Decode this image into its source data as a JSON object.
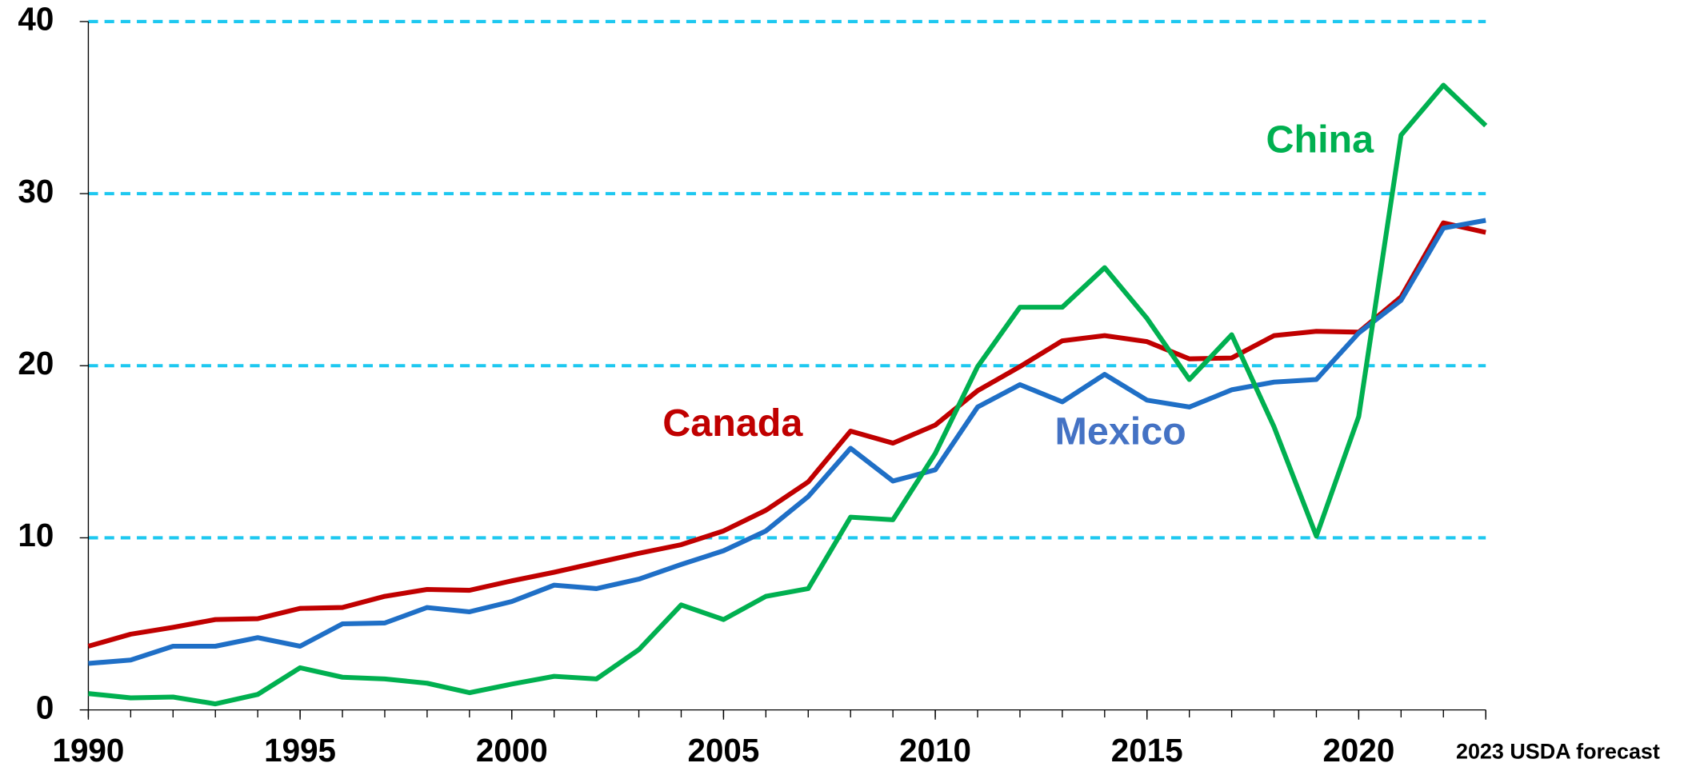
{
  "chart_data": {
    "type": "line",
    "x": [
      1990,
      1991,
      1992,
      1993,
      1994,
      1995,
      1996,
      1997,
      1998,
      1999,
      2000,
      2001,
      2002,
      2003,
      2004,
      2005,
      2006,
      2007,
      2008,
      2009,
      2010,
      2011,
      2012,
      2013,
      2014,
      2015,
      2016,
      2017,
      2018,
      2019,
      2020,
      2021,
      2022,
      2023
    ],
    "series": [
      {
        "name": "Canada",
        "color": "#c00000",
        "values": [
          3.7,
          4.4,
          4.8,
          5.25,
          5.3,
          5.9,
          5.95,
          6.6,
          7.0,
          6.95,
          7.5,
          8.0,
          8.55,
          9.1,
          9.6,
          10.4,
          11.6,
          13.25,
          16.2,
          15.5,
          16.55,
          18.55,
          19.95,
          21.45,
          21.75,
          21.4,
          20.4,
          20.45,
          21.75,
          22.0,
          21.95,
          24.0,
          28.3,
          27.75
        ]
      },
      {
        "name": "Mexico",
        "color": "#1f6fc6",
        "values": [
          2.7,
          2.9,
          3.7,
          3.7,
          4.2,
          3.7,
          5.0,
          5.05,
          5.95,
          5.7,
          6.3,
          7.25,
          7.05,
          7.6,
          8.45,
          9.25,
          10.4,
          12.4,
          15.2,
          13.3,
          13.95,
          17.6,
          18.9,
          17.9,
          19.5,
          18.0,
          17.6,
          18.6,
          19.05,
          19.2,
          21.9,
          23.8,
          28.0,
          28.45
        ]
      },
      {
        "name": "China",
        "color": "#00b050",
        "values": [
          0.95,
          0.7,
          0.75,
          0.35,
          0.9,
          2.45,
          1.9,
          1.8,
          1.55,
          1.0,
          1.5,
          1.95,
          1.8,
          3.5,
          6.1,
          5.25,
          6.6,
          7.05,
          11.2,
          11.05,
          14.9,
          19.95,
          23.4,
          23.4,
          25.7,
          22.75,
          19.2,
          21.8,
          16.45,
          10.1,
          17.05,
          33.4,
          36.3,
          33.95
        ]
      }
    ],
    "xlim": [
      1990,
      2023
    ],
    "xticks": [
      1990,
      1995,
      2000,
      2005,
      2010,
      2015,
      2020,
      {
        "value": 2023,
        "label": "2023 USDA forecast"
      }
    ],
    "ylim": [
      0,
      40
    ],
    "yticks": [
      0,
      10,
      20,
      30,
      40
    ],
    "grid": true,
    "grid_color": "#1ec8f0"
  }
}
